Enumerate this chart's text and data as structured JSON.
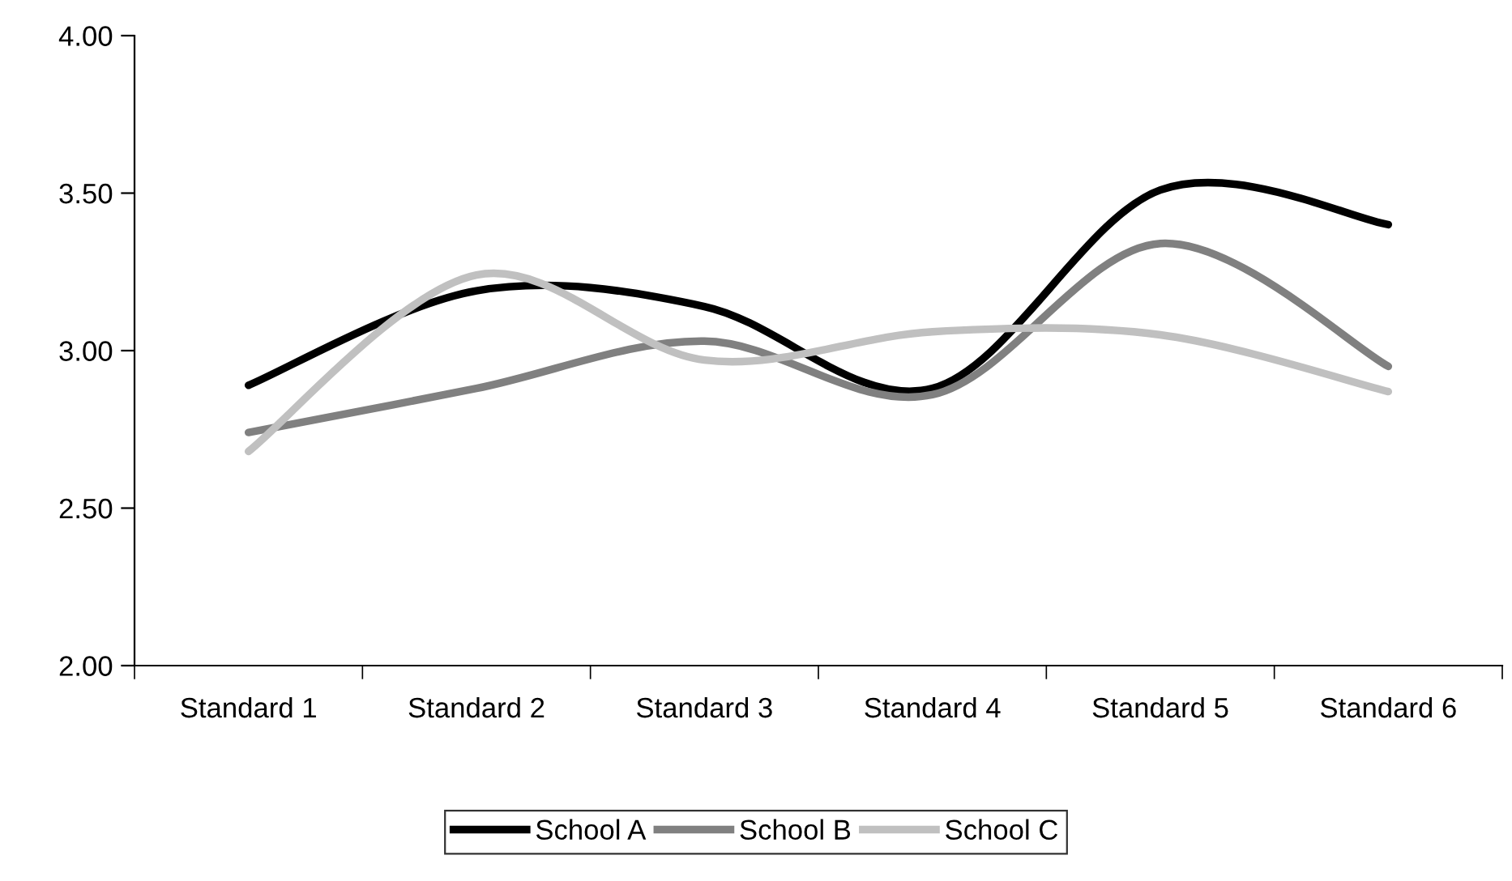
{
  "chart_data": {
    "type": "line",
    "categories": [
      "Standard 1",
      "Standard 2",
      "Standard 3",
      "Standard 4",
      "Standard 5",
      "Standard 6"
    ],
    "series": [
      {
        "name": "School A",
        "color": "#000000",
        "values": [
          2.89,
          3.19,
          3.14,
          2.88,
          3.51,
          3.4
        ]
      },
      {
        "name": "School B",
        "color": "#808080",
        "values": [
          2.74,
          2.88,
          3.03,
          2.86,
          3.34,
          2.95
        ]
      },
      {
        "name": "School C",
        "color": "#c0c0c0",
        "values": [
          2.68,
          3.24,
          2.97,
          3.06,
          3.05,
          2.87
        ]
      }
    ],
    "ylim": [
      2,
      4
    ],
    "yticks": [
      {
        "value": 2,
        "label": "2.00"
      },
      {
        "value": 2.5,
        "label": "2.50"
      },
      {
        "value": 3,
        "label": "3.00"
      },
      {
        "value": 3.5,
        "label": "3.50"
      },
      {
        "value": 4,
        "label": "4.00"
      }
    ],
    "grid": false,
    "legend": "bottom",
    "marker": "none",
    "line_style": "solid"
  }
}
